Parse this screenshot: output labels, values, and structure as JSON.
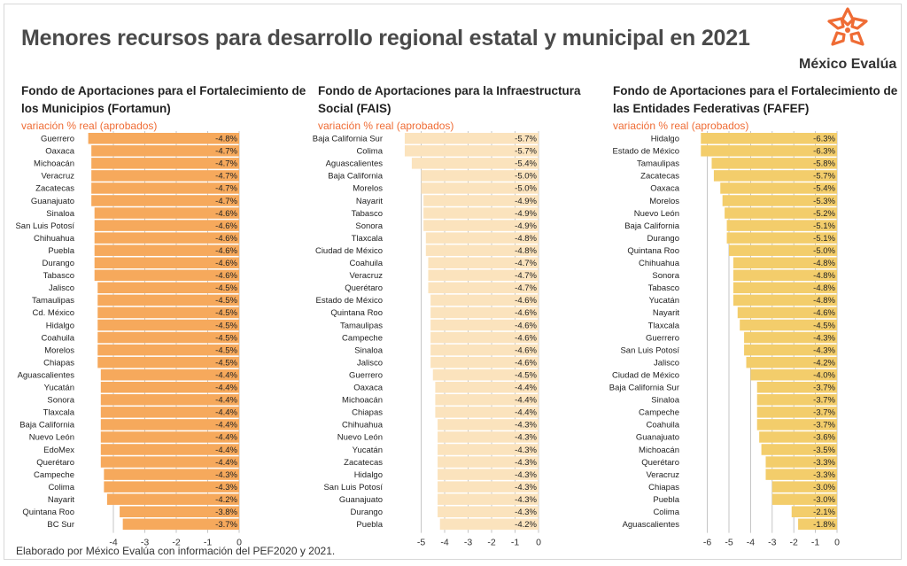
{
  "title": "Menores recursos para desarrollo regional estatal y municipal en 2021",
  "brand": {
    "name": "México Evalúa",
    "logo_icon": "asterisk-star-logo-icon"
  },
  "source": "Elaborado por México Evalúa con información  del PEF2020 y 2021.",
  "colors": {
    "accent": "#ef6c35",
    "fortamun": "#f6a95c",
    "fais": "#fbe3bd",
    "fafef": "#f3cd6b",
    "gridline": "#b8b8b8"
  },
  "chart_data": [
    {
      "type": "bar",
      "orientation": "horizontal",
      "title": "Fondo de Aportaciones para el Fortalecimiento de los Municipios (Fortamun)",
      "subtitle": "variación % real (aprobados)",
      "xlim": [
        -4.6,
        0
      ],
      "xticks": [
        -4,
        -3,
        -2,
        -1,
        0
      ],
      "categories": [
        "Guerrero",
        "Oaxaca",
        "Michoacán",
        "Veracruz",
        "Zacatecas",
        "Guanajuato",
        "Sinaloa",
        "San Luis Potosí",
        "Chihuahua",
        "Puebla",
        "Durango",
        "Tabasco",
        "Jalisco",
        "Tamaulipas",
        "Cd. México",
        "Hidalgo",
        "Coahuila",
        "Morelos",
        "Chiapas",
        "Aguascalientes",
        "Yucatán",
        "Sonora",
        "Tlaxcala",
        "Baja California",
        "Nuevo León",
        "EdoMex",
        "Querétaro",
        "Campeche",
        "Colima",
        "Nayarit",
        "Quintana Roo",
        "BC Sur"
      ],
      "values": [
        -4.8,
        -4.7,
        -4.7,
        -4.7,
        -4.7,
        -4.7,
        -4.6,
        -4.6,
        -4.6,
        -4.6,
        -4.6,
        -4.6,
        -4.5,
        -4.5,
        -4.5,
        -4.5,
        -4.5,
        -4.5,
        -4.5,
        -4.4,
        -4.4,
        -4.4,
        -4.4,
        -4.4,
        -4.4,
        -4.4,
        -4.4,
        -4.3,
        -4.3,
        -4.2,
        -3.8,
        -3.7
      ],
      "labels": [
        "-4.8%",
        "-4.7%",
        "-4.7%",
        "-4.7%",
        "-4.7%",
        "-4.7%",
        "-4.6%",
        "-4.6%",
        "-4.6%",
        "-4.6%",
        "-4.6%",
        "-4.6%",
        "-4.5%",
        "-4.5%",
        "-4.5%",
        "-4.5%",
        "-4.5%",
        "-4.5%",
        "-4.5%",
        "-4.4%",
        "-4.4%",
        "-4.4%",
        "-4.4%",
        "-4.4%",
        "-4.4%",
        "-4.4%",
        "-4.4%",
        "-4.3%",
        "-4.3%",
        "-4.2%",
        "-3.8%",
        "-3.7%"
      ],
      "color": "#f6a95c"
    },
    {
      "type": "bar",
      "orientation": "horizontal",
      "title": "Fondo de Aportaciones para la Infraestructura Social (FAIS)",
      "subtitle": "variación % real (aprobados)",
      "xlim": [
        -5.6,
        0
      ],
      "xticks": [
        -5,
        -4,
        -3,
        -2,
        -1,
        0
      ],
      "categories": [
        "Baja California Sur",
        "Colima",
        "Aguascalientes",
        "Baja California",
        "Morelos",
        "Nayarit",
        "Tabasco",
        "Sonora",
        "Tlaxcala",
        "Ciudad de México",
        "Coahuila",
        "Veracruz",
        "Querétaro",
        "Estado de México",
        "Quintana Roo",
        "Tamaulipas",
        "Campeche",
        "Sinaloa",
        "Jalisco",
        "Guerrero",
        "Oaxaca",
        "Michoacán",
        "Chiapas",
        "Chihuahua",
        "Nuevo León",
        "Yucatán",
        "Zacatecas",
        "Hidalgo",
        "San Luis Potosí",
        "Guanajuato",
        "Durango",
        "Puebla"
      ],
      "values": [
        -5.7,
        -5.7,
        -5.4,
        -5.0,
        -5.0,
        -4.9,
        -4.9,
        -4.9,
        -4.8,
        -4.8,
        -4.7,
        -4.7,
        -4.7,
        -4.6,
        -4.6,
        -4.6,
        -4.6,
        -4.6,
        -4.6,
        -4.5,
        -4.4,
        -4.4,
        -4.4,
        -4.3,
        -4.3,
        -4.3,
        -4.3,
        -4.3,
        -4.3,
        -4.3,
        -4.3,
        -4.2
      ],
      "labels": [
        "-5.7%",
        "-5.7%",
        "-5.4%",
        "-5.0%",
        "-5.0%",
        "-4.9%",
        "-4.9%",
        "-4.9%",
        "-4.8%",
        "-4.8%",
        "-4.7%",
        "-4.7%",
        "-4.7%",
        "-4.6%",
        "-4.6%",
        "-4.6%",
        "-4.6%",
        "-4.6%",
        "-4.6%",
        "-4.5%",
        "-4.4%",
        "-4.4%",
        "-4.4%",
        "-4.3%",
        "-4.3%",
        "-4.3%",
        "-4.3%",
        "-4.3%",
        "-4.3%",
        "-4.3%",
        "-4.3%",
        "-4.2%"
      ],
      "color": "#fbe3bd"
    },
    {
      "type": "bar",
      "orientation": "horizontal",
      "title": "Fondo de Aportaciones para el Fortalecimiento de las Entidades Federativas (FAFEF)",
      "subtitle": "variación % real (aprobados)",
      "xlim": [
        -6.3,
        0
      ],
      "xticks": [
        -6,
        -5,
        -4,
        -3,
        -2,
        -1,
        0
      ],
      "categories": [
        "Hidalgo",
        "Estado de México",
        "Tamaulipas",
        "Zacatecas",
        "Oaxaca",
        "Morelos",
        "Nuevo León",
        "Baja California",
        "Durango",
        "Quintana Roo",
        "Chihuahua",
        "Sonora",
        "Tabasco",
        "Yucatán",
        "Nayarit",
        "Tlaxcala",
        "Guerrero",
        "San Luis Potosí",
        "Jalisco",
        "Ciudad de México",
        "Baja California Sur",
        "Sinaloa",
        "Campeche",
        "Coahuila",
        "Guanajuato",
        "Michoacán",
        "Querétaro",
        "Veracruz",
        "Chiapas",
        "Puebla",
        "Colima",
        "Aguascalientes"
      ],
      "values": [
        -6.3,
        -6.3,
        -5.8,
        -5.7,
        -5.4,
        -5.3,
        -5.2,
        -5.1,
        -5.1,
        -5.0,
        -4.8,
        -4.8,
        -4.8,
        -4.8,
        -4.6,
        -4.5,
        -4.3,
        -4.3,
        -4.2,
        -4.0,
        -3.7,
        -3.7,
        -3.7,
        -3.7,
        -3.6,
        -3.5,
        -3.3,
        -3.3,
        -3.0,
        -3.0,
        -2.1,
        -1.8
      ],
      "labels": [
        "-6.3%",
        "-6.3%",
        "-5.8%",
        "-5.7%",
        "-5.4%",
        "-5.3%",
        "-5.2%",
        "-5.1%",
        "-5.1%",
        "-5.0%",
        "-4.8%",
        "-4.8%",
        "-4.8%",
        "-4.8%",
        "-4.6%",
        "-4.5%",
        "-4.3%",
        "-4.3%",
        "-4.2%",
        "-4.0%",
        "-3.7%",
        "-3.7%",
        "-3.7%",
        "-3.7%",
        "-3.6%",
        "-3.5%",
        "-3.3%",
        "-3.3%",
        "-3.0%",
        "-3.0%",
        "-2.1%",
        "-1.8%"
      ],
      "color": "#f3cd6b"
    }
  ]
}
